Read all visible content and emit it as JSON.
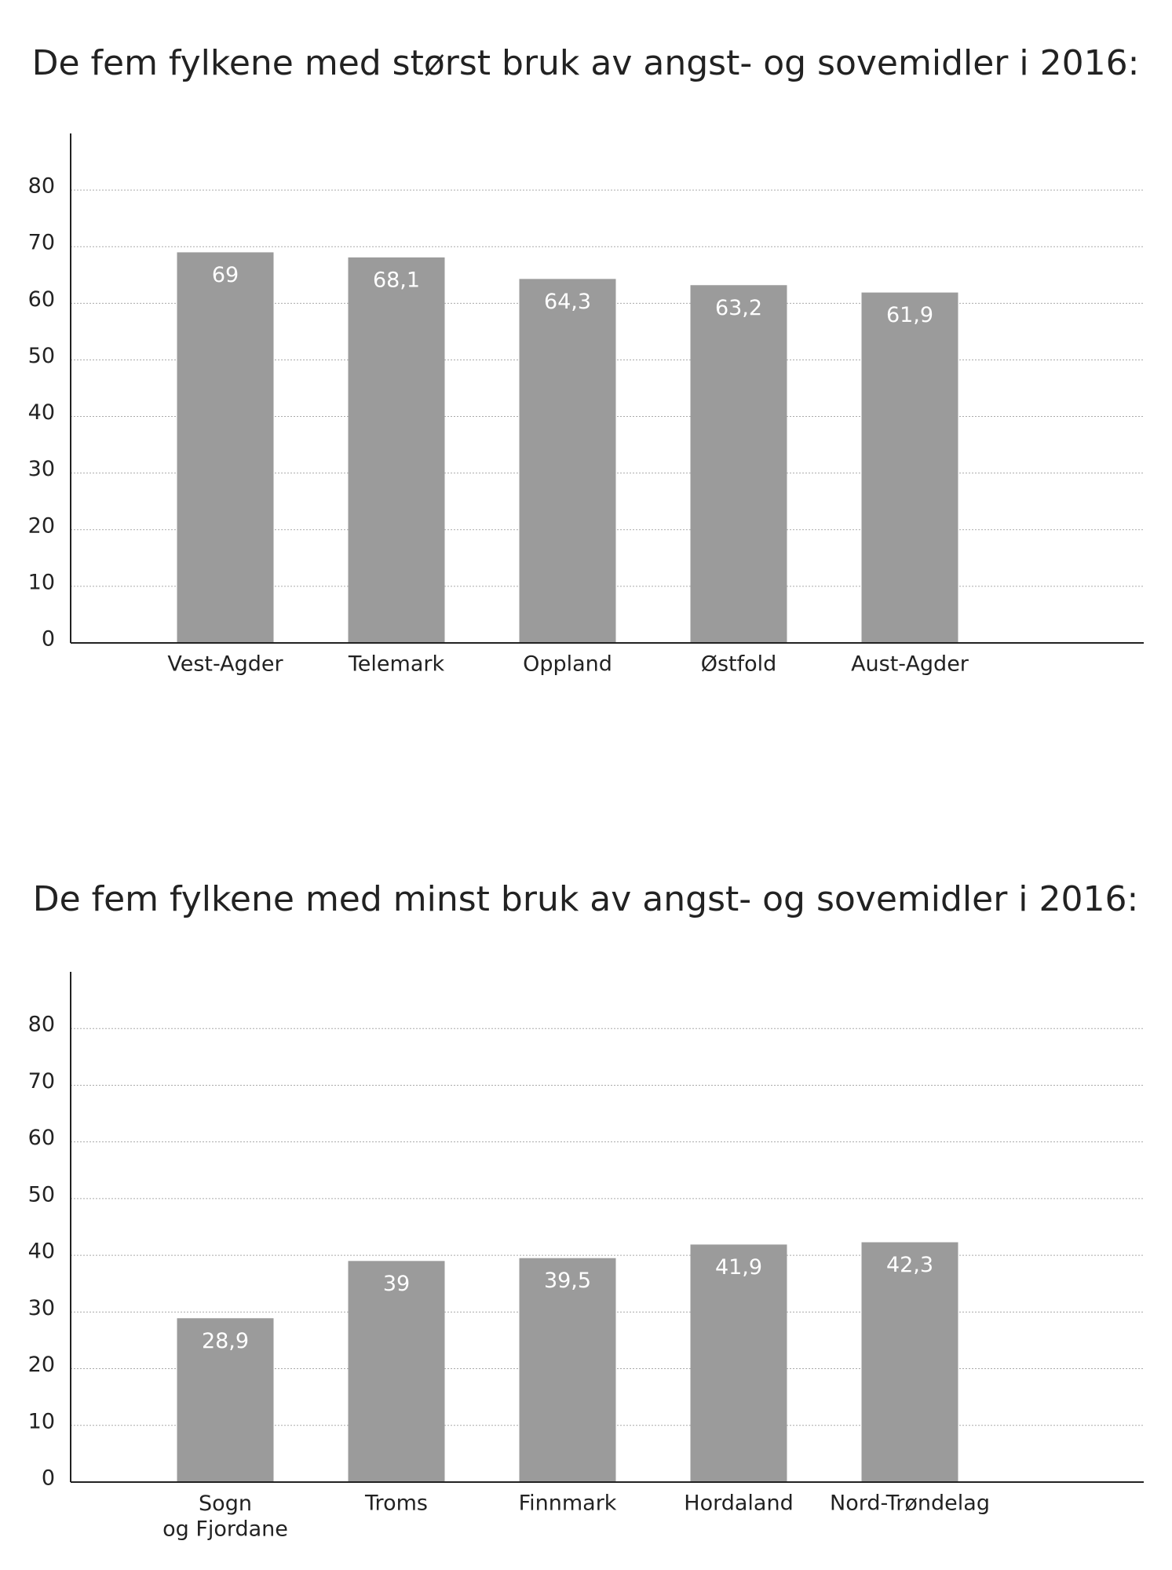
{
  "chart_data": [
    {
      "type": "bar",
      "title": "De fem fylkene med størst bruk av angst- og sovemidler i 2016:",
      "categories": [
        "Vest-Agder",
        "Telemark",
        "Oppland",
        "Østfold",
        "Aust-Agder"
      ],
      "values": [
        69,
        68.1,
        64.3,
        63.2,
        61.9
      ],
      "value_labels": [
        "69",
        "68,1",
        "64,3",
        "63,2",
        "61,9"
      ],
      "color": "#9b9b9b",
      "ylim": [
        0,
        90
      ],
      "yticks": [
        0,
        10,
        20,
        30,
        40,
        50,
        60,
        70,
        80
      ],
      "grid": true
    },
    {
      "type": "bar",
      "title": "De fem fylkene med minst bruk av angst- og sovemidler i 2016:",
      "categories": [
        "Sogn\nog Fjordane",
        "Troms",
        "Finnmark",
        "Hordaland",
        "Nord-Trøndelag"
      ],
      "values": [
        28.9,
        39,
        39.5,
        41.9,
        42.3
      ],
      "value_labels": [
        "28,9",
        "39",
        "39,5",
        "41,9",
        "42,3"
      ],
      "color": "#9b9b9b",
      "ylim": [
        0,
        90
      ],
      "yticks": [
        0,
        10,
        20,
        30,
        40,
        50,
        60,
        70,
        80
      ],
      "grid": true
    }
  ]
}
